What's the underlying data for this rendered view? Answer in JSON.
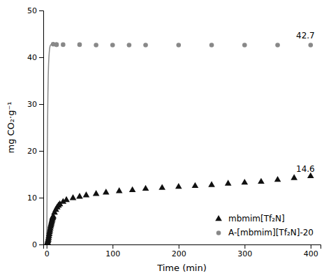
{
  "chart_data": {
    "type": "line",
    "xlabel": "Time (min)",
    "ylabel": "mg CO₂·g⁻¹",
    "xlim": [
      -5,
      415
    ],
    "ylim": [
      0,
      50
    ],
    "xticks": [
      0,
      100,
      200,
      300,
      400
    ],
    "yticks": [
      0,
      10,
      20,
      30,
      40,
      50
    ],
    "grid": false,
    "legend": "lower right",
    "series": [
      {
        "type": "line",
        "line_style": "solid",
        "color": "#888888",
        "x": [
          0,
          0.5,
          1,
          1.5,
          2,
          2.5,
          3,
          3.5,
          4,
          4.5,
          5,
          5.5,
          6,
          6.5,
          7,
          7.5,
          8,
          8.5,
          9,
          9.5,
          10
        ],
        "values": [
          0,
          5,
          18,
          26,
          32,
          36,
          38.5,
          40.0,
          41.0,
          41.8,
          42.2,
          42.5,
          42.6,
          42.7,
          42.7,
          42.8,
          42.8,
          42.8,
          42.8,
          42.8,
          42.8
        ]
      },
      {
        "name": "A-[mbmim][Tf₂N]-20",
        "type": "scatter",
        "marker": "circle",
        "color": "#888888",
        "x": [
          15,
          25,
          50,
          75,
          100,
          125,
          150,
          200,
          250,
          300,
          350,
          400
        ],
        "values": [
          42.7,
          42.7,
          42.7,
          42.6,
          42.6,
          42.6,
          42.6,
          42.6,
          42.6,
          42.6,
          42.6,
          42.6
        ]
      },
      {
        "type": "scatter",
        "marker": "circle",
        "color": "#888888",
        "x": [
          10,
          15
        ],
        "values": [
          42.8,
          42.7
        ]
      },
      {
        "name": "mbmim[Tf₂N]",
        "type": "scatter",
        "marker": "triangle",
        "color": "#111111",
        "x": [
          0.5,
          1,
          1.5,
          2,
          2.5,
          3,
          3.5,
          4,
          4.5,
          5,
          5.5,
          6,
          6.5,
          7,
          7.5,
          8,
          8.5,
          9,
          9.5,
          10,
          12,
          14,
          16,
          18,
          20,
          25,
          30,
          40,
          50,
          60,
          75,
          90,
          110,
          130,
          150,
          175,
          200,
          225,
          250,
          275,
          300,
          325,
          350,
          375,
          400
        ],
        "values": [
          0.1,
          0.2,
          0.4,
          0.7,
          1.0,
          1.4,
          1.8,
          2.2,
          2.6,
          3.0,
          3.4,
          3.8,
          4.1,
          4.4,
          4.7,
          5.0,
          5.3,
          5.6,
          5.8,
          6.0,
          6.8,
          7.4,
          7.9,
          8.3,
          8.6,
          9.1,
          9.5,
          9.9,
          10.2,
          10.5,
          10.8,
          11.1,
          11.4,
          11.6,
          11.9,
          12.1,
          12.3,
          12.5,
          12.7,
          13.0,
          13.2,
          13.4,
          13.8,
          14.2,
          14.6
        ]
      }
    ],
    "annotations": [
      {
        "x": 378,
        "y": 44.0,
        "text": "42.7"
      },
      {
        "x": 378,
        "y": 15.5,
        "text": "14.6"
      }
    ]
  }
}
